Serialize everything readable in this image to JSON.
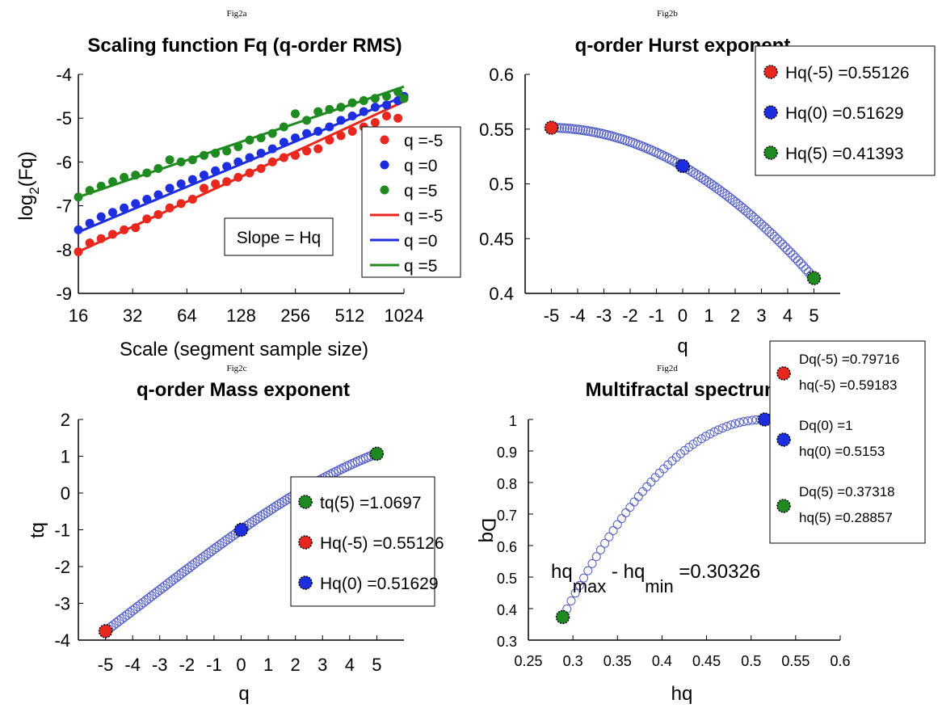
{
  "colors": {
    "red": "#e8271f",
    "blue": "#1d2ee0",
    "green": "#1f8a1f",
    "ring": "#4f5bc4",
    "axis": "#000000"
  },
  "chart_data": [
    {
      "id": "fig2a",
      "type": "scatter",
      "caption": "Fig2a",
      "title": "Scaling function Fq (q-order RMS)",
      "xlabel": "Scale (segment sample size)",
      "ylabel_main": "log",
      "ylabel_sub": "2",
      "ylabel_end": "(Fq)",
      "x_scale": "log2",
      "xlim": [
        16,
        1024
      ],
      "ylim": [
        -9,
        -4
      ],
      "x_ticks": [
        16,
        32,
        64,
        128,
        256,
        512,
        1024
      ],
      "x_tick_labels": [
        "16",
        "32",
        "64",
        "128",
        "256",
        "512",
        "1024"
      ],
      "y_ticks": [
        -9,
        -8,
        -7,
        -6,
        -5,
        -4
      ],
      "y_tick_labels": [
        "-9",
        "-8",
        "-7",
        "-6",
        "-5",
        "-4"
      ],
      "annotation": "Slope = Hq",
      "scales": [
        16,
        18.5,
        21.4,
        24.8,
        28.7,
        33.2,
        38.4,
        44.4,
        51.4,
        59.4,
        68.8,
        79.6,
        92.1,
        106.5,
        123.2,
        142.6,
        165,
        190.9,
        220.8,
        255.5,
        295.6,
        342,
        395.6,
        457.7,
        529.6,
        612.7,
        708.9,
        820.2,
        949,
        1024
      ],
      "series": [
        {
          "name": "q =-5",
          "kind": "points",
          "color": "red",
          "y": [
            -8.05,
            -7.85,
            -7.75,
            -7.65,
            -7.55,
            -7.5,
            -7.3,
            -7.2,
            -7.05,
            -6.95,
            -6.85,
            -6.6,
            -6.5,
            -6.45,
            -6.35,
            -6.25,
            -6.15,
            -6.0,
            -5.9,
            -5.85,
            -5.75,
            -5.7,
            -5.5,
            -5.4,
            -5.3,
            -5.2,
            -5.1,
            -4.95,
            -5.0,
            -4.55
          ]
        },
        {
          "name": "q =0",
          "kind": "points",
          "color": "blue",
          "y": [
            -7.55,
            -7.4,
            -7.25,
            -7.15,
            -7.05,
            -6.95,
            -6.85,
            -6.75,
            -6.6,
            -6.5,
            -6.4,
            -6.3,
            -6.2,
            -6.1,
            -6.0,
            -5.9,
            -5.8,
            -5.7,
            -5.55,
            -5.45,
            -5.35,
            -5.3,
            -5.2,
            -5.05,
            -4.95,
            -4.85,
            -4.75,
            -4.7,
            -4.6,
            -4.5
          ]
        },
        {
          "name": "q =5",
          "kind": "points",
          "color": "green",
          "y": [
            -6.8,
            -6.65,
            -6.55,
            -6.45,
            -6.35,
            -6.3,
            -6.25,
            -6.15,
            -5.95,
            -6.0,
            -5.95,
            -5.85,
            -5.8,
            -5.75,
            -5.65,
            -5.5,
            -5.45,
            -5.35,
            -5.2,
            -4.9,
            -5.05,
            -4.85,
            -4.8,
            -4.75,
            -4.65,
            -4.6,
            -4.55,
            -4.5,
            -4.4,
            -4.55
          ]
        },
        {
          "name": "q =-5",
          "kind": "line",
          "color": "red",
          "x": [
            16,
            1024
          ],
          "y": [
            -8.05,
            -4.62
          ]
        },
        {
          "name": "q =0",
          "kind": "line",
          "color": "blue",
          "x": [
            16,
            1024
          ],
          "y": [
            -7.6,
            -4.5
          ]
        },
        {
          "name": "q =5",
          "kind": "line",
          "color": "green",
          "x": [
            16,
            1024
          ],
          "y": [
            -6.8,
            -4.28
          ]
        }
      ],
      "legend": [
        "q =-5",
        "q =0",
        "q =5",
        "q =-5",
        "q =0",
        "q =5"
      ],
      "legend_placement": "right"
    },
    {
      "id": "fig2b",
      "type": "line",
      "caption": "Fig2b",
      "title": "q-order Hurst exponent",
      "xlabel": "q",
      "ylabel": "",
      "xlim": [
        -6,
        6
      ],
      "ylim": [
        0.4,
        0.6
      ],
      "x_ticks": [
        -5,
        -4,
        -3,
        -2,
        -1,
        0,
        1,
        2,
        3,
        4,
        5
      ],
      "x_tick_labels": [
        "-5",
        "-4",
        "-3",
        "-2",
        "-1",
        "0",
        "1",
        "2",
        "3",
        "4",
        "5"
      ],
      "y_ticks": [
        0.4,
        0.45,
        0.5,
        0.55,
        0.6
      ],
      "y_tick_labels": [
        "0.4",
        "0.45",
        "0.5",
        "0.55",
        "0.6"
      ],
      "markers": [
        {
          "x": -5,
          "y": 0.55126,
          "color": "red"
        },
        {
          "x": 0,
          "y": 0.51629,
          "color": "blue"
        },
        {
          "x": 5,
          "y": 0.41393,
          "color": "green"
        }
      ],
      "legend": [
        "Hq(-5) =0.55126",
        "Hq(0) =0.51629",
        "Hq(5) =0.41393"
      ],
      "legend_placement": "top-right"
    },
    {
      "id": "fig2c",
      "type": "line",
      "caption": "Fig2c",
      "title": "q-order Mass exponent",
      "xlabel": "q",
      "ylabel": "tq",
      "xlim": [
        -6,
        6
      ],
      "ylim": [
        -4,
        2
      ],
      "x_ticks": [
        -5,
        -4,
        -3,
        -2,
        -1,
        0,
        1,
        2,
        3,
        4,
        5
      ],
      "x_tick_labels": [
        "-5",
        "-4",
        "-3",
        "-2",
        "-1",
        "0",
        "1",
        "2",
        "3",
        "4",
        "5"
      ],
      "y_ticks": [
        -4,
        -3,
        -2,
        -1,
        0,
        1,
        2
      ],
      "y_tick_labels": [
        "-4",
        "-3",
        "-2",
        "-1",
        "0",
        "1",
        "2"
      ],
      "markers": [
        {
          "x": 5,
          "y": 1.0697,
          "color": "green"
        },
        {
          "x": -5,
          "y": -3.7563,
          "color": "red"
        },
        {
          "x": 0,
          "y": -1,
          "color": "blue"
        }
      ],
      "legend": [
        "tq(5) =1.0697",
        "Hq(-5) =0.55126",
        "Hq(0) =0.51629"
      ],
      "legend_placement": "right"
    },
    {
      "id": "fig2d",
      "type": "scatter",
      "caption": "Fig2d",
      "title": "Multifractal spectrum",
      "xlabel": "hq",
      "ylabel": "Dq",
      "xlim": [
        0.25,
        0.6
      ],
      "ylim": [
        0.3,
        1
      ],
      "x_ticks": [
        0.25,
        0.3,
        0.35,
        0.4,
        0.45,
        0.5,
        0.55,
        0.6
      ],
      "x_tick_labels": [
        "0.25",
        "0.3",
        "0.35",
        "0.4",
        "0.45",
        "0.5",
        "0.55",
        "0.6"
      ],
      "y_ticks": [
        0.3,
        0.4,
        0.5,
        0.6,
        0.7,
        0.8,
        0.9,
        1
      ],
      "y_tick_labels": [
        "0.3",
        "0.4",
        "0.5",
        "0.6",
        "0.7",
        "0.8",
        "0.9",
        "1"
      ],
      "markers": [
        {
          "x": 0.59183,
          "y": 0.79716,
          "color": "red"
        },
        {
          "x": 0.5153,
          "y": 1,
          "color": "blue"
        },
        {
          "x": 0.28857,
          "y": 0.37318,
          "color": "green"
        }
      ],
      "legend": [
        {
          "line1": "Dq(-5) =0.79716",
          "line2": "hq(-5) =0.59183"
        },
        {
          "line1": "Dq(0) =1",
          "line2": "hq(0) =0.5153"
        },
        {
          "line1": "Dq(5) =0.37318",
          "line2": "hq(5) =0.28857"
        }
      ],
      "legend_placement": "top-right",
      "annotation": {
        "part1": "hq",
        "sub1": "max",
        "part2": " - hq",
        "sub2": "min",
        "part3": " =0.30326"
      }
    }
  ]
}
